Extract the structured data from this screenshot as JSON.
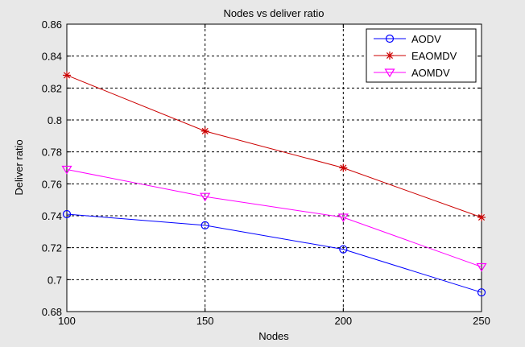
{
  "chart_data": {
    "type": "line",
    "title": "Nodes vs deliver ratio",
    "xlabel": "Nodes",
    "ylabel": "Deliver ratio",
    "x": [
      100,
      150,
      200,
      250
    ],
    "xlim": [
      100,
      250
    ],
    "ylim": [
      0.68,
      0.86
    ],
    "xticks": [
      "100",
      "150",
      "200",
      "250"
    ],
    "yticks": [
      "0.68",
      "0.7",
      "0.72",
      "0.74",
      "0.76",
      "0.78",
      "0.8",
      "0.82",
      "0.84",
      "0.86"
    ],
    "grid": true,
    "legend_position": "top-right",
    "series": [
      {
        "name": "AODV",
        "values": [
          0.741,
          0.734,
          0.719,
          0.692
        ],
        "color": "#0000ff",
        "marker": "circle"
      },
      {
        "name": "EAOMDV",
        "values": [
          0.828,
          0.793,
          0.77,
          0.739
        ],
        "color": "#cc0000",
        "marker": "star"
      },
      {
        "name": "AOMDV",
        "values": [
          0.769,
          0.752,
          0.739,
          0.708
        ],
        "color": "#ff00ff",
        "marker": "triangle-down"
      }
    ]
  }
}
